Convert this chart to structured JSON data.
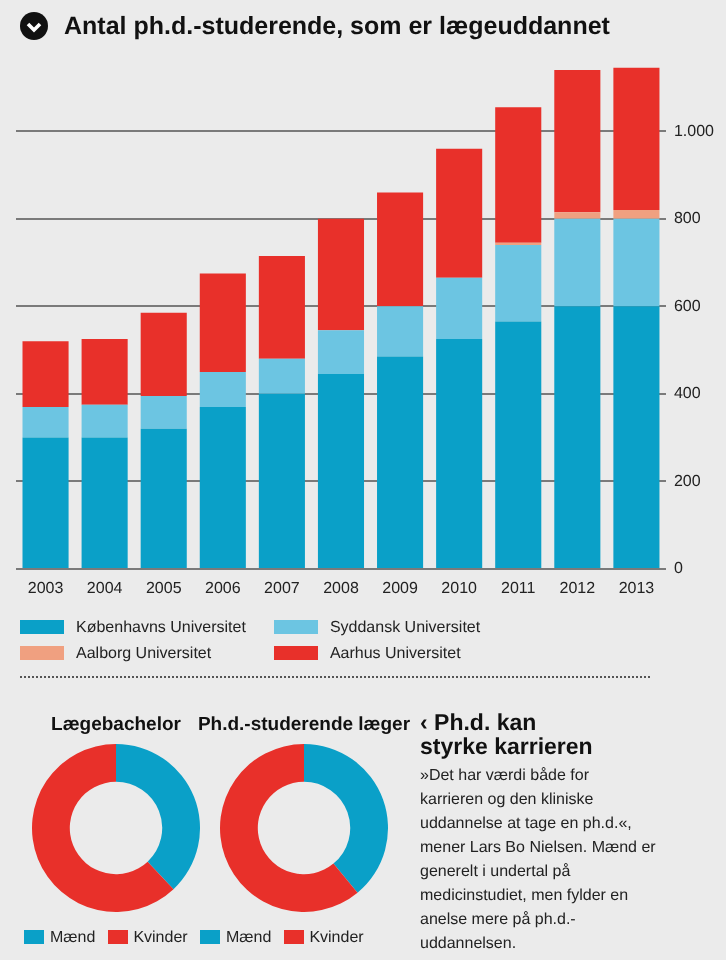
{
  "chart_data": [
    {
      "type": "bar",
      "title": "Antal ph.d.-studerende, som er lægeuddannet",
      "categories": [
        "2003",
        "2004",
        "2005",
        "2006",
        "2007",
        "2008",
        "2009",
        "2010",
        "2011",
        "2012",
        "2013"
      ],
      "stacked": true,
      "series": [
        {
          "name": "Københavns Universitet",
          "color": "#0aa0c8",
          "values": [
            300,
            300,
            320,
            370,
            400,
            445,
            485,
            525,
            565,
            600,
            600
          ]
        },
        {
          "name": "Syddansk Universitet",
          "color": "#6cc5e2",
          "values": [
            70,
            75,
            75,
            80,
            80,
            100,
            115,
            140,
            175,
            200,
            200
          ]
        },
        {
          "name": "Aalborg Universitet",
          "color": "#f0a080",
          "values": [
            0,
            0,
            0,
            0,
            0,
            0,
            0,
            0,
            5,
            15,
            20
          ]
        },
        {
          "name": "Aarhus Universitet",
          "color": "#e8302a",
          "values": [
            150,
            150,
            190,
            225,
            235,
            255,
            260,
            295,
            310,
            325,
            325
          ]
        }
      ],
      "ylim": [
        0,
        1150
      ],
      "yticks": [
        0,
        200,
        400,
        600,
        800,
        {
          "value": 1000,
          "label": "1.000"
        }
      ],
      "grid": "y",
      "legend": "bottom"
    },
    {
      "type": "donut",
      "title": "Lægebachelor",
      "categories": [
        "Mænd",
        "Kvinder"
      ],
      "values": [
        38,
        62
      ],
      "colors": [
        "#0aa0c8",
        "#e8302a"
      ],
      "legend": "bottom"
    },
    {
      "type": "donut",
      "title": "Ph.d.-studerende læger",
      "categories": [
        "Mænd",
        "Kvinder"
      ],
      "values": [
        39,
        61
      ],
      "colors": [
        "#0aa0c8",
        "#e8302a"
      ],
      "legend": "bottom"
    },
    {
      "type": "other",
      "title": "‹ Ph.d. kan styrke karrieren",
      "annotations": [
        "»Det har værdi både for karrieren og den kliniske uddannelse at tage en ph.d.«, mener Lars Bo Nielsen. Mænd er generelt i undertal på medicinstudiet, men fylder en anelse mere på ph.d.-uddannelsen."
      ]
    }
  ]
}
